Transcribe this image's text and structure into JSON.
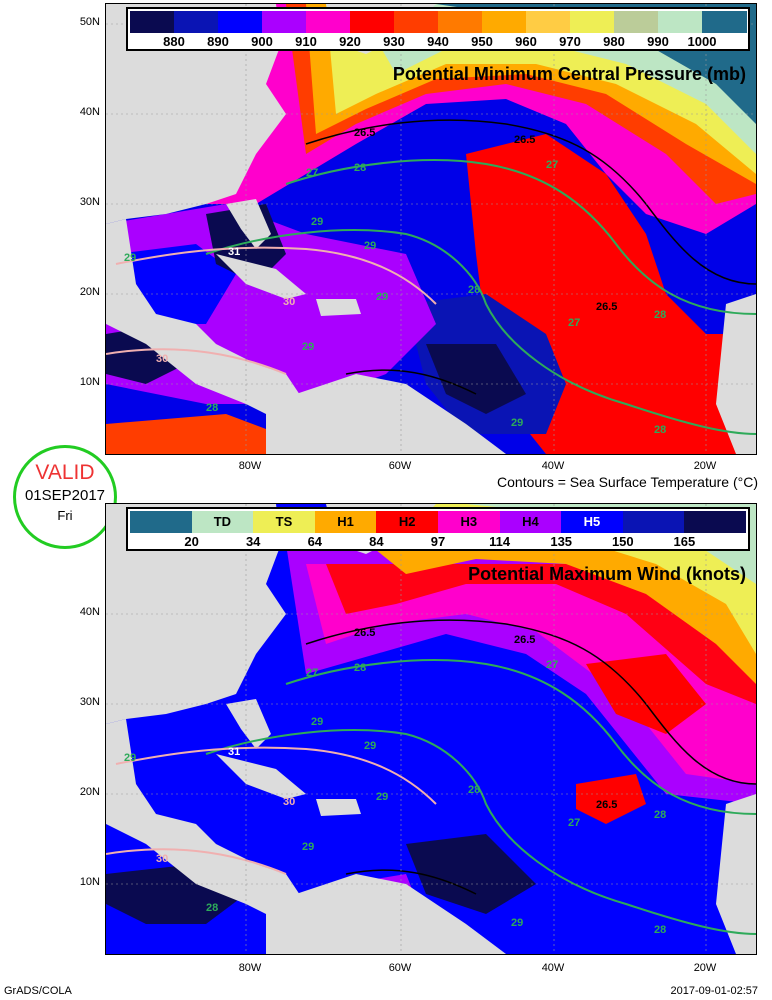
{
  "top_panel": {
    "title": "Potential Minimum Central Pressure (mb)",
    "colorbar": {
      "colors": [
        "#0a0a50",
        "#0a14b4",
        "#0000ff",
        "#aa00ff",
        "#ff00cc",
        "#ff0000",
        "#ff3d00",
        "#ff7a00",
        "#ffaa00",
        "#ffcc44",
        "#eeee55",
        "#bbcc99",
        "#bde6c4",
        "#206a8a"
      ],
      "ticks": [
        "880",
        "890",
        "900",
        "910",
        "920",
        "930",
        "940",
        "950",
        "960",
        "970",
        "980",
        "990",
        "1000"
      ]
    }
  },
  "bottom_panel": {
    "title": "Potential Maximum Wind (knots)",
    "colorbar": {
      "colors": [
        "#206a8a",
        "#bde6c4",
        "#eeee55",
        "#ffaa00",
        "#ff0000",
        "#ff00cc",
        "#aa00ff",
        "#0000ff",
        "#0a14b4",
        "#0a0a50"
      ],
      "category_labels": [
        "",
        "TD",
        "TS",
        "H1",
        "H2",
        "H3",
        "H4",
        "H5",
        "",
        ""
      ],
      "ticks": [
        "20",
        "34",
        "64",
        "84",
        "97",
        "114",
        "135",
        "150",
        "165"
      ]
    }
  },
  "contour_labels": [
    "26.5",
    "26.5",
    "26.5",
    "27",
    "27",
    "27",
    "28",
    "28",
    "28",
    "28",
    "28",
    "29",
    "29",
    "29",
    "29",
    "29",
    "29",
    "30",
    "30",
    "31"
  ],
  "axis": {
    "lat_labels": [
      "50N",
      "40N",
      "30N",
      "20N",
      "10N"
    ],
    "lon_labels": [
      "80W",
      "60W",
      "40W",
      "20W"
    ]
  },
  "contour_note": "Contours = Sea Surface Temperature (°C)",
  "valid": {
    "word": "VALID",
    "date": "01SEP2017",
    "day": "Fri"
  },
  "footer": {
    "left": "GrADS/COLA",
    "right": "2017-09-01-02:57"
  },
  "colors": {
    "land": "#dcdcdc",
    "sst_contour": "#2eaa5a",
    "warm_contour": "#f0b0b0",
    "black_contour": "#000000"
  }
}
